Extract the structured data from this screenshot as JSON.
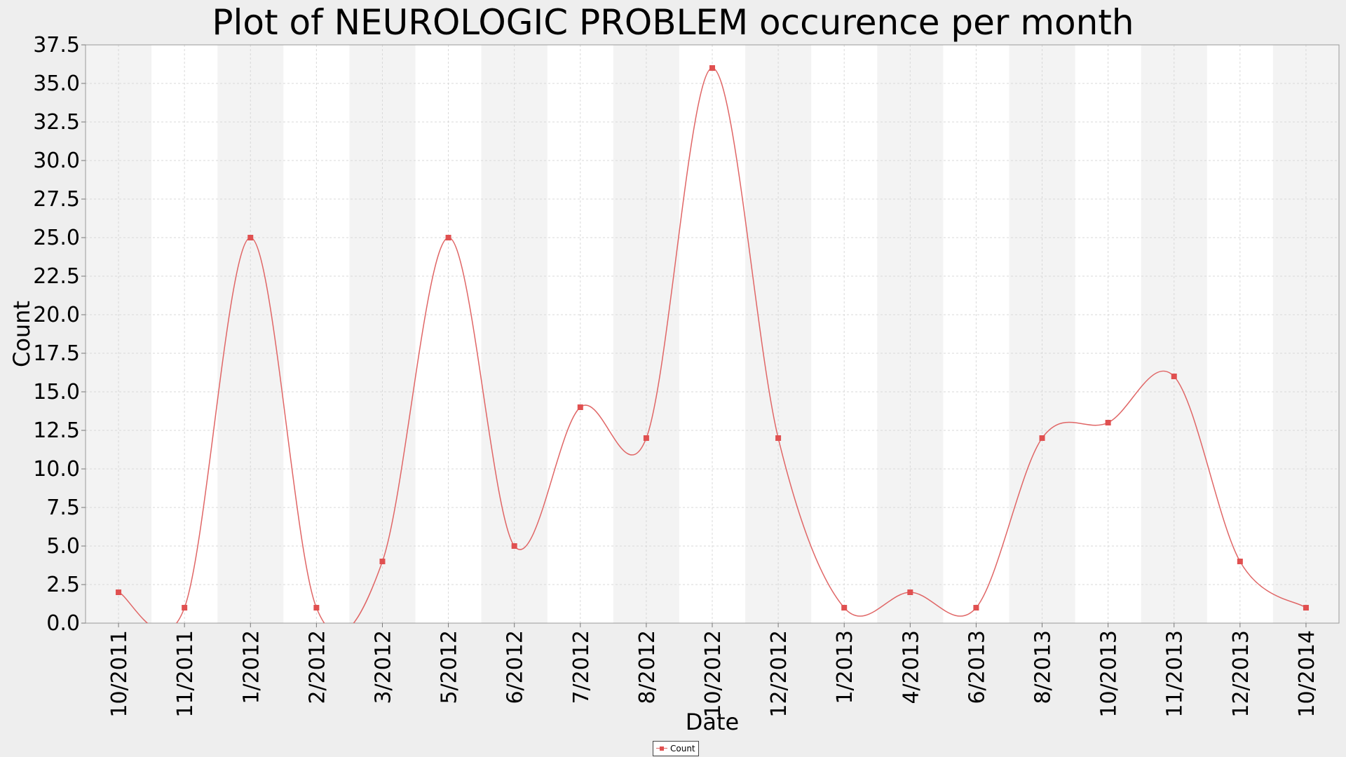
{
  "chart_data": {
    "type": "line",
    "title": "Plot of NEUROLOGIC PROBLEM occurence per month",
    "xlabel": "Date",
    "ylabel": "Count",
    "ylim": [
      0,
      37.5
    ],
    "yticks": [
      "0.0",
      "2.5",
      "5.0",
      "7.5",
      "10.0",
      "12.5",
      "15.0",
      "17.5",
      "20.0",
      "22.5",
      "25.0",
      "27.5",
      "30.0",
      "32.5",
      "35.0",
      "37.5"
    ],
    "categories": [
      "10/2011",
      "11/2011",
      "1/2012",
      "2/2012",
      "3/2012",
      "5/2012",
      "6/2012",
      "7/2012",
      "8/2012",
      "10/2012",
      "12/2012",
      "1/2013",
      "4/2013",
      "6/2013",
      "8/2013",
      "10/2013",
      "11/2013",
      "12/2013",
      "10/2014"
    ],
    "series": [
      {
        "name": "Count",
        "values": [
          2,
          1,
          25,
          1,
          4,
          25,
          5,
          14,
          12,
          36,
          12,
          1,
          2,
          1,
          12,
          13,
          16,
          4,
          1
        ]
      }
    ],
    "grid": true,
    "legend": "bottom-center",
    "colors": {
      "line": "#e06666",
      "marker": "#e05050",
      "band_shaded": "#f3f3f3",
      "band_plain": "#ffffff",
      "grid": "#d8d8d8",
      "background": "#eeeeee"
    }
  },
  "legend": {
    "label": "Count"
  }
}
